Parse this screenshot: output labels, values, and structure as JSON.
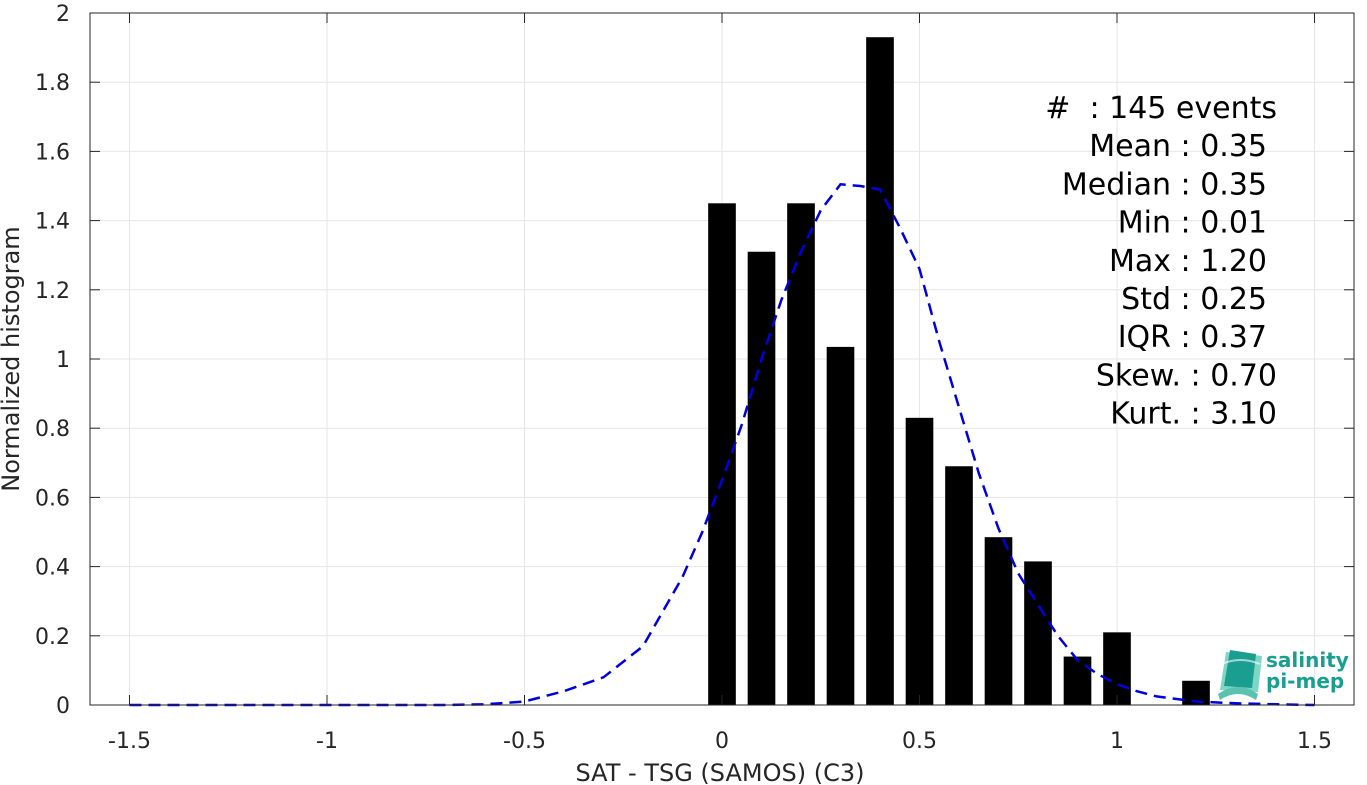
{
  "chart_data": {
    "type": "bar",
    "xlabel": "SAT - TSG (SAMOS) (C3)",
    "ylabel": "Normalized histogram",
    "xlim": [
      -1.6,
      1.6
    ],
    "ylim": [
      0,
      2
    ],
    "grid": true,
    "x_ticks": [
      -1.5,
      -1,
      -0.5,
      0,
      0.5,
      1,
      1.5
    ],
    "x_tick_labels": [
      "-1.5",
      "-1",
      "-0.5",
      "0",
      "0.5",
      "1",
      "1.5"
    ],
    "y_ticks": [
      0,
      0.2,
      0.4,
      0.6,
      0.8,
      1,
      1.2,
      1.4,
      1.6,
      1.8,
      2
    ],
    "y_tick_labels": [
      "0",
      "0.2",
      "0.4",
      "0.6",
      "0.8",
      "1",
      "1.2",
      "1.4",
      "1.6",
      "1.8",
      "2"
    ],
    "bar_width": 0.07,
    "bars": {
      "color": "#000000",
      "x": [
        0,
        0.1,
        0.2,
        0.3,
        0.4,
        0.5,
        0.6,
        0.7,
        0.8,
        0.9,
        1.0,
        1.2
      ],
      "values": [
        1.45,
        1.31,
        1.45,
        1.035,
        1.93,
        0.83,
        0.69,
        0.485,
        0.415,
        0.14,
        0.21,
        0.07
      ]
    },
    "fit_curve": {
      "style": "dashed",
      "color": "#0000dd",
      "x": [
        -1.5,
        -1.4,
        -1.3,
        -1.2,
        -1.1,
        -1.0,
        -0.9,
        -0.8,
        -0.7,
        -0.6,
        -0.5,
        -0.4,
        -0.3,
        -0.2,
        -0.1,
        -0.05,
        0.0,
        0.05,
        0.1,
        0.15,
        0.2,
        0.25,
        0.3,
        0.35,
        0.4,
        0.45,
        0.5,
        0.55,
        0.6,
        0.65,
        0.7,
        0.75,
        0.8,
        0.85,
        0.9,
        0.95,
        1.0,
        1.05,
        1.1,
        1.2,
        1.3,
        1.4,
        1.5
      ],
      "y": [
        0,
        0,
        0,
        0,
        0,
        0,
        0,
        0,
        0,
        0.002,
        0.01,
        0.04,
        0.08,
        0.17,
        0.37,
        0.5,
        0.65,
        0.81,
        1.0,
        1.17,
        1.31,
        1.43,
        1.505,
        1.5,
        1.49,
        1.38,
        1.26,
        1.05,
        0.86,
        0.67,
        0.51,
        0.38,
        0.29,
        0.2,
        0.13,
        0.09,
        0.06,
        0.04,
        0.025,
        0.01,
        0.005,
        0.002,
        0
      ]
    },
    "annotations": [
      "#  : 145 events",
      "Mean : 0.35",
      "Median : 0.35",
      "Min : 0.01",
      "Max : 1.20",
      "Std : 0.25",
      "IQR : 0.37",
      "Skew. : 0.70",
      "Kurt. : 3.10"
    ]
  },
  "logo": {
    "line1": "salinity",
    "line2": "pi-mep",
    "color": "#1a9e8f"
  }
}
